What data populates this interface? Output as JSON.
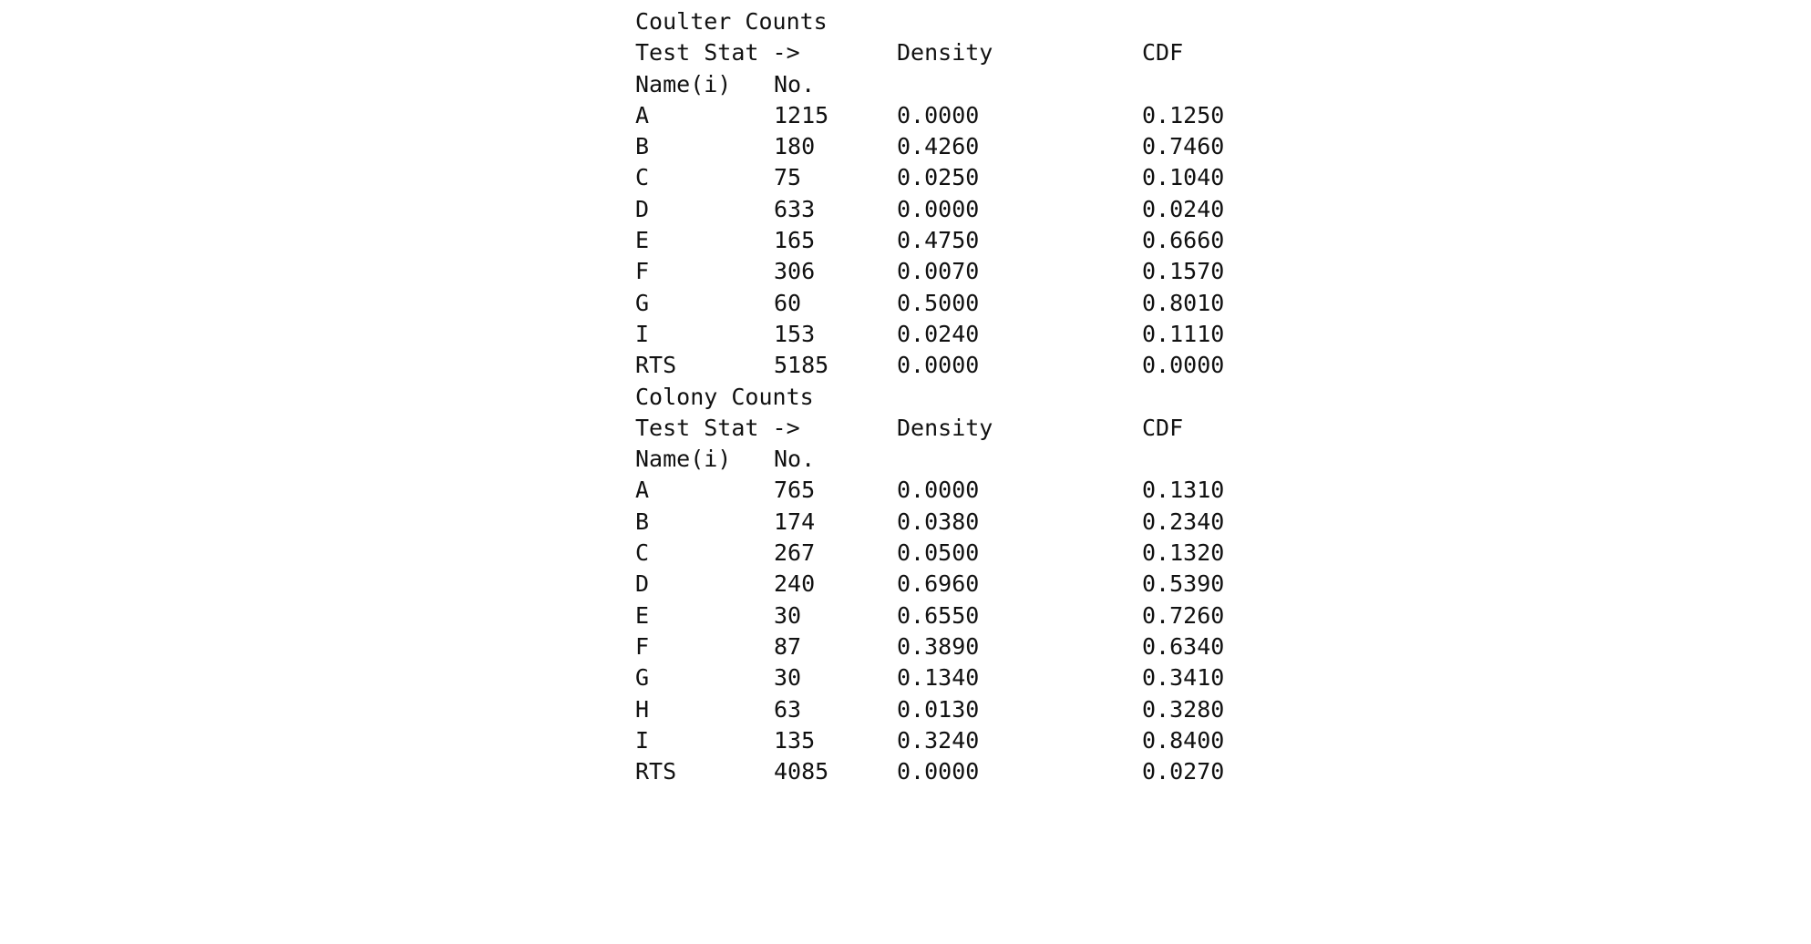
{
  "sections": [
    {
      "title": "Coulter Counts",
      "header1": {
        "label": "Test Stat ->",
        "density": "Density",
        "cdf": "CDF"
      },
      "header2": {
        "name": "Name(i)",
        "no": "No."
      },
      "rows": [
        {
          "name": "A",
          "no": "1215",
          "density": "0.0000",
          "cdf": "0.1250"
        },
        {
          "name": "B",
          "no": "180",
          "density": "0.4260",
          "cdf": "0.7460"
        },
        {
          "name": "C",
          "no": "75",
          "density": "0.0250",
          "cdf": "0.1040"
        },
        {
          "name": "D",
          "no": "633",
          "density": "0.0000",
          "cdf": "0.0240"
        },
        {
          "name": "E",
          "no": "165",
          "density": "0.4750",
          "cdf": "0.6660"
        },
        {
          "name": "F",
          "no": "306",
          "density": "0.0070",
          "cdf": "0.1570"
        },
        {
          "name": "G",
          "no": "60",
          "density": "0.5000",
          "cdf": "0.8010"
        },
        {
          "name": "I",
          "no": "153",
          "density": "0.0240",
          "cdf": "0.1110"
        },
        {
          "name": "RTS",
          "no": "5185",
          "density": "0.0000",
          "cdf": "0.0000"
        }
      ]
    },
    {
      "title": "Colony Counts",
      "header1": {
        "label": "Test Stat ->",
        "density": "Density",
        "cdf": "CDF"
      },
      "header2": {
        "name": "Name(i)",
        "no": "No."
      },
      "rows": [
        {
          "name": "A",
          "no": "765",
          "density": "0.0000",
          "cdf": "0.1310"
        },
        {
          "name": "B",
          "no": "174",
          "density": "0.0380",
          "cdf": "0.2340"
        },
        {
          "name": "C",
          "no": "267",
          "density": "0.0500",
          "cdf": "0.1320"
        },
        {
          "name": "D",
          "no": "240",
          "density": "0.6960",
          "cdf": "0.5390"
        },
        {
          "name": "E",
          "no": "30",
          "density": "0.6550",
          "cdf": "0.7260"
        },
        {
          "name": "F",
          "no": "87",
          "density": "0.3890",
          "cdf": "0.6340"
        },
        {
          "name": "G",
          "no": "30",
          "density": "0.1340",
          "cdf": "0.3410"
        },
        {
          "name": "H",
          "no": "63",
          "density": "0.0130",
          "cdf": "0.3280"
        },
        {
          "name": "I",
          "no": "135",
          "density": "0.3240",
          "cdf": "0.8400"
        },
        {
          "name": "RTS",
          "no": "4085",
          "density": "0.0000",
          "cdf": "0.0270"
        }
      ]
    }
  ]
}
